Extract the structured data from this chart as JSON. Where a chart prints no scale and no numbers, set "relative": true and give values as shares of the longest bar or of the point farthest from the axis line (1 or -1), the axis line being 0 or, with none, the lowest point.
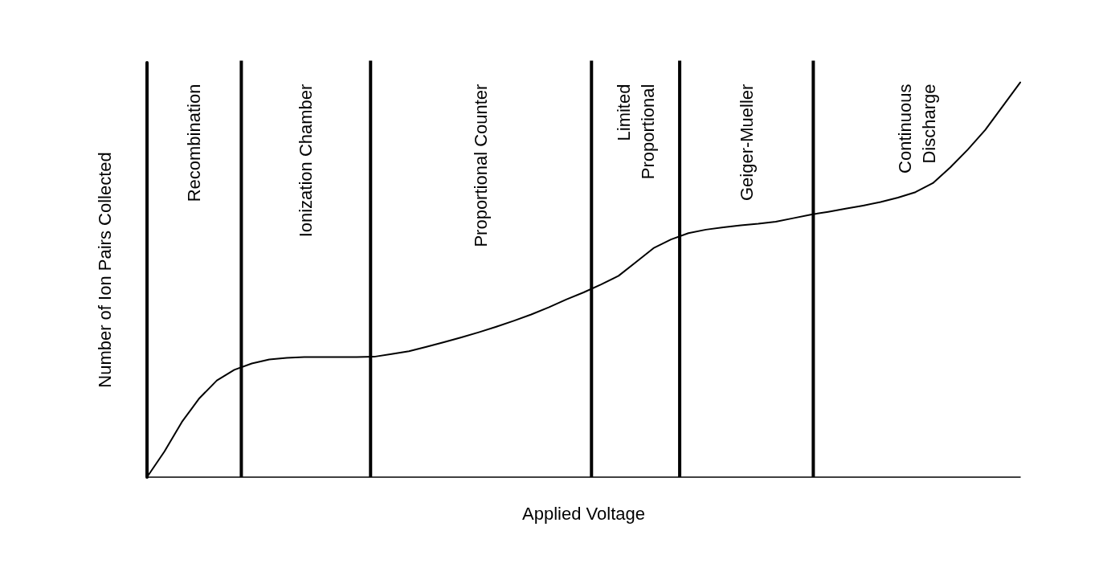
{
  "chart_data": {
    "type": "line",
    "relative": true,
    "xlabel": "Applied Voltage",
    "ylabel": "Number of Ion Pairs Collected",
    "categories": [
      null,
      null,
      null,
      null,
      null,
      null,
      null,
      null,
      null,
      null,
      null,
      null,
      null,
      null,
      null,
      null,
      null,
      null,
      null,
      null,
      null,
      null,
      null,
      null,
      null,
      null,
      null,
      null,
      null,
      null,
      null,
      null,
      null,
      null,
      null,
      null,
      null,
      null,
      null,
      null,
      null,
      null,
      null,
      null,
      null,
      null,
      null,
      null,
      null,
      null,
      null
    ],
    "grid": false,
    "marker": "none",
    "line_style": "solid",
    "series": [
      {
        "color": "#000000",
        "values": [
          0,
          0.065,
          0.14,
          0.2,
          0.245,
          0.272,
          0.288,
          0.298,
          0.302,
          0.304,
          0.304,
          0.304,
          0.304,
          0.305,
          0.312,
          0.319,
          0.33,
          0.342,
          0.354,
          0.367,
          0.381,
          0.396,
          0.412,
          0.43,
          0.45,
          0.468,
          0.488,
          0.51,
          0.545,
          0.58,
          0.602,
          0.618,
          0.627,
          0.633,
          0.638,
          0.642,
          0.647,
          0.656,
          0.665,
          0.672,
          0.68,
          0.688,
          0.697,
          0.708,
          0.722,
          0.745,
          0.785,
          0.83,
          0.88,
          0.94,
          1
        ]
      }
    ],
    "annotations": [
      "Recombination",
      "Ionization Chamber",
      "Proportional Counter",
      "Limited\nProportional",
      "Geiger-Mueller",
      "Continuous\nDischarge"
    ]
  }
}
